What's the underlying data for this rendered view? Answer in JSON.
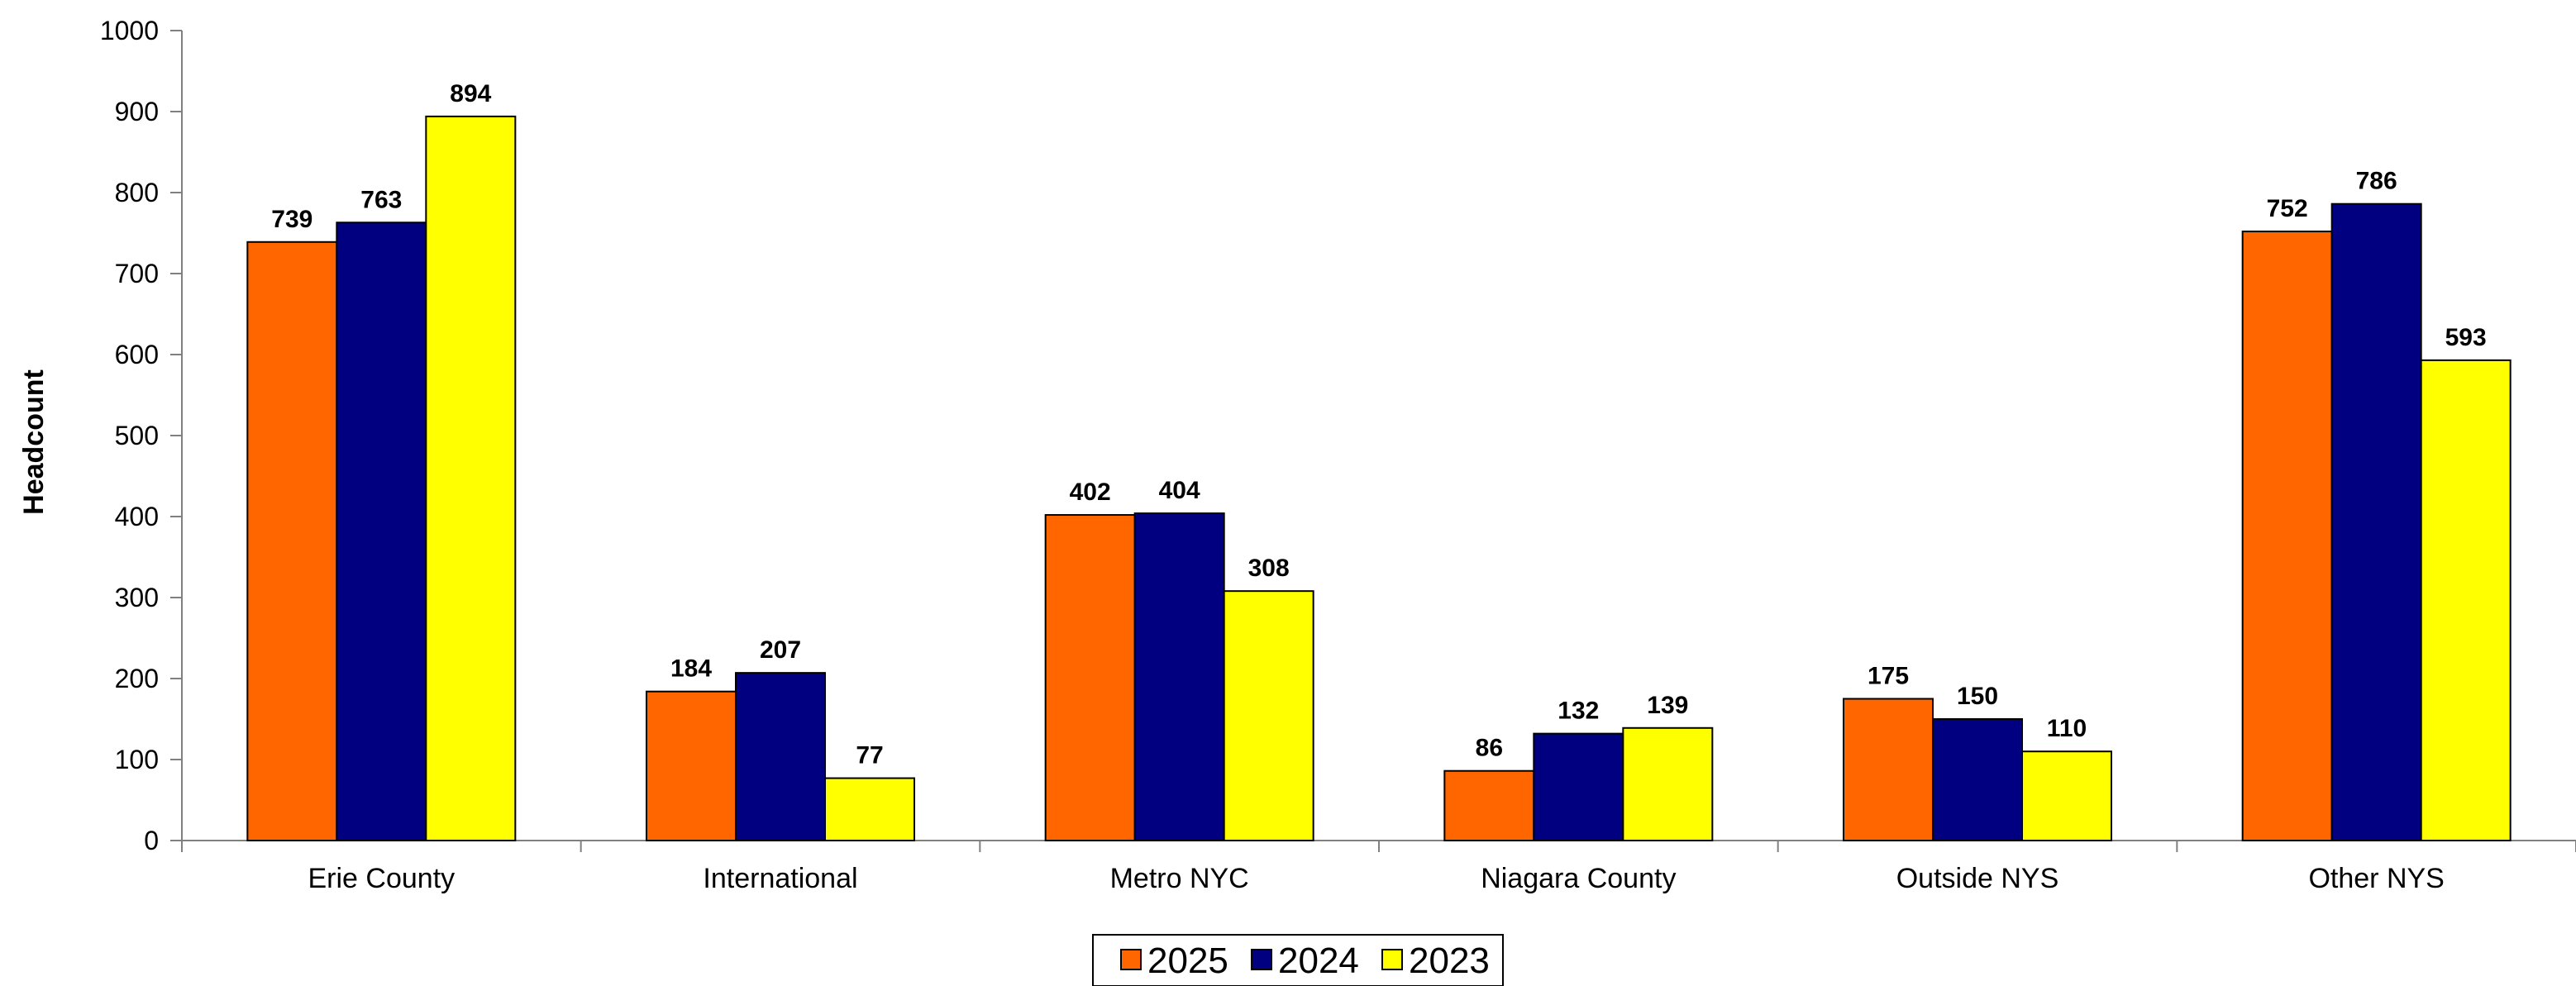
{
  "chart_data": {
    "type": "bar",
    "title": "",
    "xlabel": "",
    "ylabel": "Headcount",
    "ylim": [
      0,
      1000
    ],
    "yticks": [
      0,
      100,
      200,
      300,
      400,
      500,
      600,
      700,
      800,
      900,
      1000
    ],
    "grid": false,
    "legend": "bottom-center",
    "categories": [
      "Erie County",
      "International",
      "Metro NYC",
      "Niagara County",
      "Outside NYS",
      "Other NYS"
    ],
    "series": [
      {
        "name": "2025",
        "color": "#ff6600",
        "values": [
          739,
          184,
          402,
          86,
          175,
          752
        ]
      },
      {
        "name": "2024",
        "color": "#000080",
        "values": [
          763,
          207,
          404,
          132,
          150,
          786
        ]
      },
      {
        "name": "2023",
        "color": "#ffff00",
        "values": [
          894,
          77,
          308,
          139,
          110,
          593
        ]
      }
    ]
  }
}
